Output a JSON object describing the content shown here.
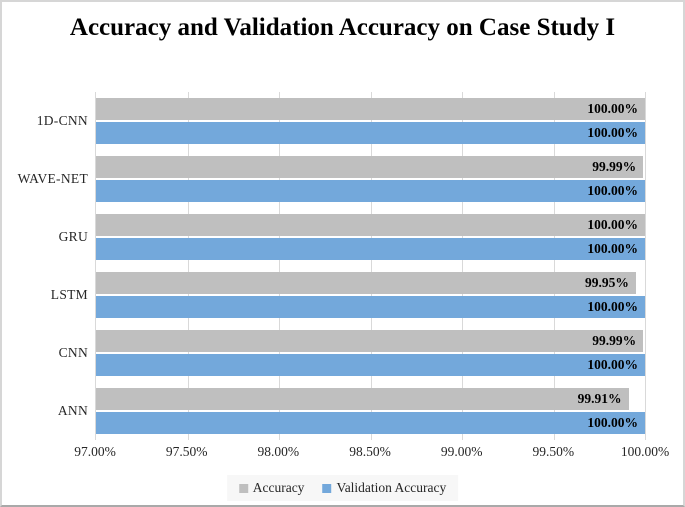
{
  "title": "Accuracy and Validation Accuracy on Case Study I",
  "chart_data": {
    "type": "bar",
    "orientation": "horizontal",
    "title": "Accuracy and Validation Accuracy on Case Study I",
    "categories": [
      "1D-CNN",
      "WAVE-NET",
      "GRU",
      "LSTM",
      "CNN",
      "ANN"
    ],
    "series": [
      {
        "name": "Accuracy",
        "color": "#bfbfbf",
        "values": [
          100.0,
          99.99,
          100.0,
          99.95,
          99.99,
          99.91
        ],
        "labels": [
          "100.00%",
          "99.99%",
          "100.00%",
          "99.95%",
          "99.99%",
          "99.91%"
        ]
      },
      {
        "name": "Validation Accuracy",
        "color": "#73a8db",
        "values": [
          100.0,
          100.0,
          100.0,
          100.0,
          100.0,
          100.0
        ],
        "labels": [
          "100.00%",
          "100.00%",
          "100.00%",
          "100.00%",
          "100.00%",
          "100.00%"
        ]
      }
    ],
    "xlim": [
      97,
      100
    ],
    "x_ticks": [
      "97.00%",
      "97.50%",
      "98.00%",
      "98.50%",
      "99.00%",
      "99.50%",
      "100.00%"
    ],
    "grid": "vertical",
    "gridline_color": "#d9d9d9",
    "legend_position": "bottom"
  }
}
